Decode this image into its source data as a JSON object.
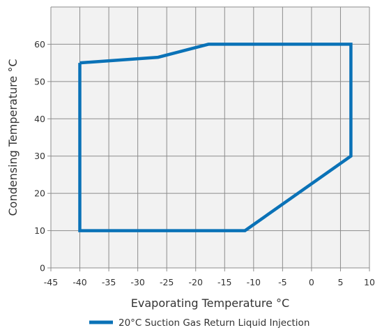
{
  "chart_data": {
    "type": "line",
    "xlabel": "Evaporating Temperature °C",
    "ylabel": "Condensing Temperature °C",
    "xlim": [
      -45,
      10
    ],
    "ylim": [
      0,
      70
    ],
    "x_ticks": [
      -45,
      -40,
      -35,
      -30,
      -25,
      -20,
      -15,
      -10,
      -5,
      0,
      5,
      10
    ],
    "y_ticks": [
      0,
      10,
      20,
      30,
      40,
      50,
      60
    ],
    "grid": true,
    "legend_position": "bottom",
    "series": [
      {
        "name": "20°C Suction Gas Return Liquid Injection",
        "color": "#0a72b7",
        "points": [
          {
            "x": -40,
            "y": 55
          },
          {
            "x": -26.5,
            "y": 56.5
          },
          {
            "x": -17.8,
            "y": 60
          },
          {
            "x": 6.8,
            "y": 60
          },
          {
            "x": 6.8,
            "y": 30
          },
          {
            "x": -11.5,
            "y": 10
          },
          {
            "x": -40,
            "y": 10
          },
          {
            "x": -40,
            "y": 55
          }
        ]
      }
    ]
  },
  "colors": {
    "plot_background": "#f2f2f2",
    "grid": "#8c8c8c",
    "text": "#333333"
  }
}
